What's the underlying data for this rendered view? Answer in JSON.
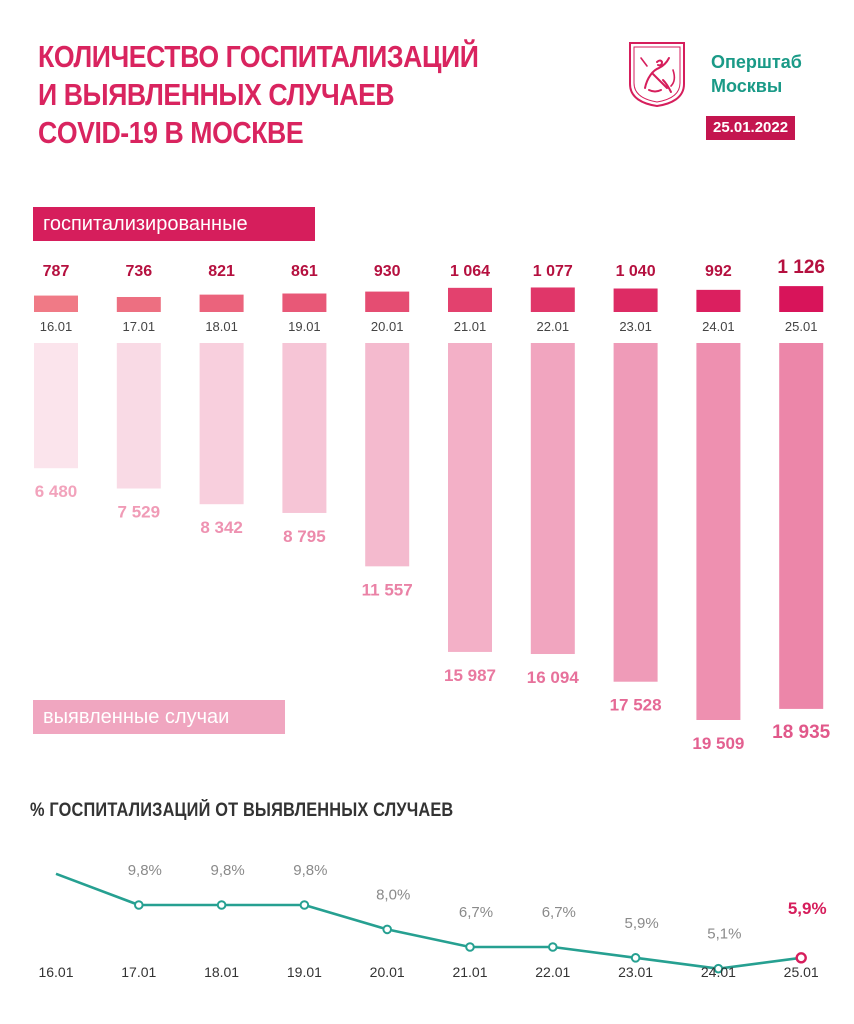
{
  "header": {
    "title_lines": [
      "КОЛИЧЕСТВО ГОСПИТАЛИЗАЦИЙ",
      "И ВЫЯВЛЕННЫХ СЛУЧАЕВ",
      "COVID-19 В МОСКВЕ"
    ],
    "brand_lines": [
      "Оперштаб",
      "Москвы"
    ],
    "date": "25.01.2022"
  },
  "labels": {
    "hospitalized": "госпитализированные",
    "cases": "выявленные случаи",
    "pct_title": "% ГОСПИТАЛИЗАЦИЙ ОТ ВЫЯВЛЕННЫХ СЛУЧАЕВ"
  },
  "colors": {
    "accent": "#d61e5c",
    "teal": "#26a091",
    "hosp_gradient": [
      "#f07a86",
      "#d8145a"
    ],
    "cases_gradient": [
      "#fbe4ec",
      "#ec86a9"
    ]
  },
  "chart_data": [
    {
      "type": "bar",
      "name": "hospitalized",
      "categories": [
        "16.01",
        "17.01",
        "18.01",
        "19.01",
        "20.01",
        "21.01",
        "22.01",
        "23.01",
        "24.01",
        "25.01"
      ],
      "values": [
        787,
        736,
        821,
        861,
        930,
        1064,
        1077,
        1040,
        992,
        1126
      ],
      "value_labels": [
        "787",
        "736",
        "821",
        "861",
        "930",
        "1 064",
        "1 077",
        "1 040",
        "992",
        "1 126"
      ]
    },
    {
      "type": "bar",
      "name": "cases",
      "categories": [
        "16.01",
        "17.01",
        "18.01",
        "19.01",
        "20.01",
        "21.01",
        "22.01",
        "23.01",
        "24.01",
        "25.01"
      ],
      "values": [
        6480,
        7529,
        8342,
        8795,
        11557,
        15987,
        16094,
        17528,
        19509,
        18935
      ],
      "value_labels": [
        "6 480",
        "7 529",
        "8 342",
        "8 795",
        "11 557",
        "15 987",
        "16 094",
        "17 528",
        "19 509",
        "18 935"
      ]
    },
    {
      "type": "line",
      "name": "pct",
      "categories": [
        "16.01",
        "17.01",
        "18.01",
        "19.01",
        "20.01",
        "21.01",
        "22.01",
        "23.01",
        "24.01",
        "25.01"
      ],
      "values": [
        12.1,
        9.8,
        9.8,
        9.8,
        8.0,
        6.7,
        6.7,
        5.9,
        5.1,
        5.9
      ],
      "value_labels": [
        "",
        "9,8",
        "9,8",
        "9,8",
        "8,0",
        "6,7",
        "6,7",
        "5,9",
        "5,1",
        "5,9"
      ],
      "unit": "%"
    }
  ]
}
